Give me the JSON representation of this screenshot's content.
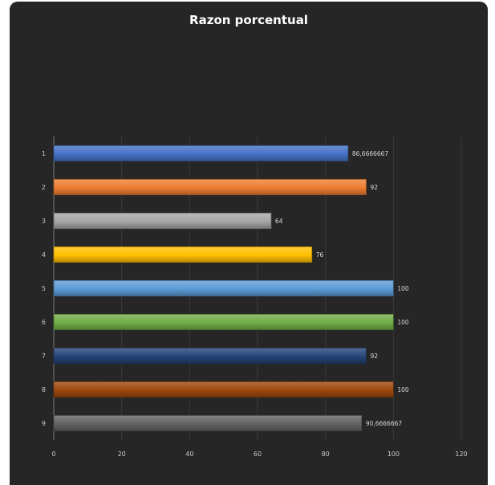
{
  "chart_data": {
    "type": "bar",
    "orientation": "horizontal",
    "title": "Razon porcentual",
    "xlabel": "",
    "ylabel": "",
    "xlim": [
      0,
      120
    ],
    "xticks": [
      "0",
      "20",
      "40",
      "60",
      "80",
      "100",
      "120"
    ],
    "grid": true,
    "legend": "none",
    "categories": [
      "1",
      "2",
      "3",
      "4",
      "5",
      "6",
      "7",
      "8",
      "9"
    ],
    "values": [
      86.6666667,
      92,
      64,
      76,
      100,
      100,
      92,
      100,
      90.6666667
    ],
    "data_labels": [
      "86,6666667",
      "92",
      "64",
      "76",
      "100",
      "100",
      "92",
      "100",
      "90,6666667"
    ],
    "colors": [
      "#4472c4",
      "#ed7d31",
      "#a5a5a5",
      "#ffc000",
      "#5b9bd5",
      "#70ad47",
      "#264478",
      "#9e480e",
      "#636363"
    ]
  }
}
